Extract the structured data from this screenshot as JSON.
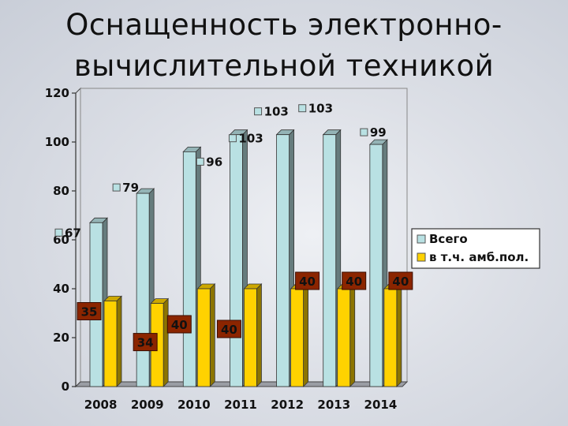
{
  "title_line1": "Оснащенность электронно-",
  "title_line2": "вычислительной техникой",
  "chart_data": {
    "type": "bar",
    "categories": [
      "2008",
      "2009",
      "2010",
      "2011",
      "2012",
      "2013",
      "2014"
    ],
    "series": [
      {
        "name": "Всего",
        "values": [
          67,
          79,
          96,
          103,
          103,
          103,
          99
        ],
        "color": "#b9e1e3"
      },
      {
        "name": "в т.ч. амб.пол.",
        "values": [
          35,
          34,
          40,
          40,
          40,
          40,
          40
        ],
        "color": "#ffd200"
      }
    ],
    "yticks": [
      "0",
      "20",
      "40",
      "60",
      "80",
      "100",
      "120"
    ],
    "ylim": [
      0,
      120
    ],
    "grid": false,
    "legend": "right",
    "label_box_color": "#8b2500"
  }
}
